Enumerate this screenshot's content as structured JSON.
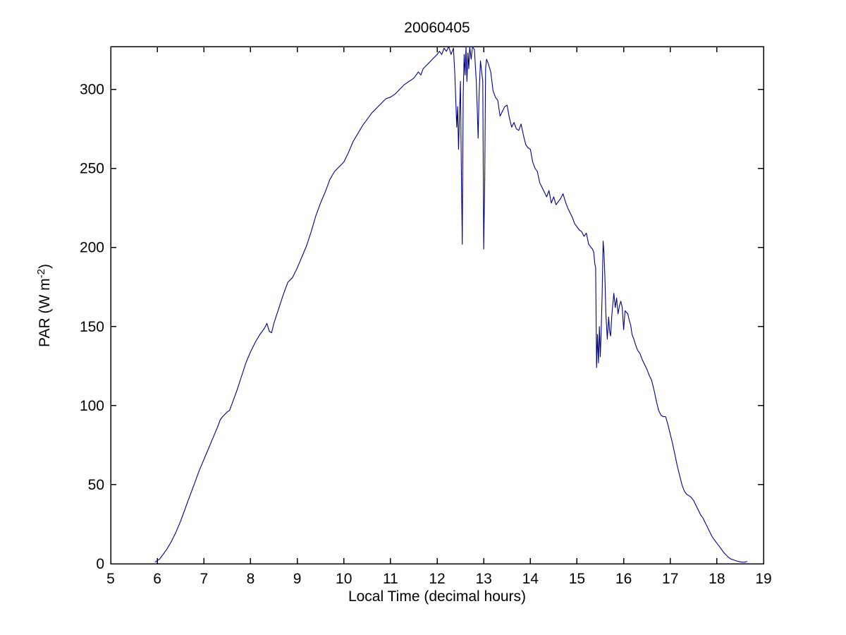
{
  "chart_data": {
    "type": "line",
    "title": "20060405",
    "xlabel": "Local Time (decimal hours)",
    "ylabel": "PAR (W m⁻²)",
    "ylabel_parts": {
      "pre": "PAR (W m",
      "sup": "-2",
      "post": ")"
    },
    "xlim": [
      5,
      19
    ],
    "ylim": [
      0,
      327
    ],
    "xticks": [
      5,
      6,
      7,
      8,
      9,
      10,
      11,
      12,
      13,
      14,
      15,
      16,
      17,
      18,
      19
    ],
    "yticks": [
      0,
      50,
      100,
      150,
      200,
      250,
      300
    ],
    "grid": false,
    "legend": null,
    "line_color": "#00008B",
    "background_color": "#ffffff",
    "points": [
      [
        5.95,
        1
      ],
      [
        6.0,
        2
      ],
      [
        6.05,
        3
      ],
      [
        6.1,
        5
      ],
      [
        6.2,
        9
      ],
      [
        6.3,
        14
      ],
      [
        6.4,
        20
      ],
      [
        6.5,
        27
      ],
      [
        6.6,
        35
      ],
      [
        6.7,
        43
      ],
      [
        6.8,
        51
      ],
      [
        6.9,
        59
      ],
      [
        7.0,
        66
      ],
      [
        7.1,
        73
      ],
      [
        7.2,
        80
      ],
      [
        7.3,
        87
      ],
      [
        7.35,
        91
      ],
      [
        7.4,
        93
      ],
      [
        7.5,
        96
      ],
      [
        7.55,
        97
      ],
      [
        7.6,
        101
      ],
      [
        7.7,
        109
      ],
      [
        7.8,
        118
      ],
      [
        7.9,
        127
      ],
      [
        8.0,
        134
      ],
      [
        8.1,
        140
      ],
      [
        8.2,
        145
      ],
      [
        8.3,
        149
      ],
      [
        8.35,
        152
      ],
      [
        8.4,
        147
      ],
      [
        8.45,
        146
      ],
      [
        8.5,
        152
      ],
      [
        8.6,
        161
      ],
      [
        8.7,
        170
      ],
      [
        8.8,
        178
      ],
      [
        8.9,
        181
      ],
      [
        9.0,
        187
      ],
      [
        9.1,
        194
      ],
      [
        9.2,
        201
      ],
      [
        9.3,
        210
      ],
      [
        9.4,
        220
      ],
      [
        9.5,
        228
      ],
      [
        9.6,
        235
      ],
      [
        9.7,
        243
      ],
      [
        9.8,
        248
      ],
      [
        9.9,
        251
      ],
      [
        10.0,
        254
      ],
      [
        10.1,
        260
      ],
      [
        10.2,
        267
      ],
      [
        10.3,
        272
      ],
      [
        10.4,
        277
      ],
      [
        10.5,
        281
      ],
      [
        10.6,
        285
      ],
      [
        10.7,
        288
      ],
      [
        10.8,
        291
      ],
      [
        10.9,
        294
      ],
      [
        11.0,
        295
      ],
      [
        11.1,
        297
      ],
      [
        11.2,
        300
      ],
      [
        11.3,
        303
      ],
      [
        11.4,
        305
      ],
      [
        11.5,
        307
      ],
      [
        11.6,
        311
      ],
      [
        11.65,
        309
      ],
      [
        11.7,
        313
      ],
      [
        11.8,
        316
      ],
      [
        11.9,
        319
      ],
      [
        12.0,
        322
      ],
      [
        12.05,
        324
      ],
      [
        12.1,
        322
      ],
      [
        12.15,
        326
      ],
      [
        12.2,
        324
      ],
      [
        12.25,
        327
      ],
      [
        12.3,
        322
      ],
      [
        12.35,
        326
      ],
      [
        12.38,
        310
      ],
      [
        12.4,
        293
      ],
      [
        12.42,
        276
      ],
      [
        12.44,
        289
      ],
      [
        12.46,
        262
      ],
      [
        12.48,
        283
      ],
      [
        12.5,
        305
      ],
      [
        12.52,
        250
      ],
      [
        12.54,
        202
      ],
      [
        12.56,
        296
      ],
      [
        12.58,
        322
      ],
      [
        12.6,
        309
      ],
      [
        12.62,
        327
      ],
      [
        12.64,
        305
      ],
      [
        12.66,
        323
      ],
      [
        12.68,
        313
      ],
      [
        12.7,
        327
      ],
      [
        12.73,
        319
      ],
      [
        12.76,
        327
      ],
      [
        12.8,
        325
      ],
      [
        12.84,
        305
      ],
      [
        12.86,
        288
      ],
      [
        12.88,
        269
      ],
      [
        12.9,
        296
      ],
      [
        12.93,
        318
      ],
      [
        12.96,
        310
      ],
      [
        12.98,
        305
      ],
      [
        13.0,
        199
      ],
      [
        13.02,
        240
      ],
      [
        13.04,
        313
      ],
      [
        13.06,
        319
      ],
      [
        13.1,
        316
      ],
      [
        13.15,
        311
      ],
      [
        13.2,
        299
      ],
      [
        13.25,
        295
      ],
      [
        13.3,
        293
      ],
      [
        13.35,
        283
      ],
      [
        13.4,
        286
      ],
      [
        13.45,
        289
      ],
      [
        13.5,
        290
      ],
      [
        13.55,
        282
      ],
      [
        13.6,
        276
      ],
      [
        13.65,
        279
      ],
      [
        13.7,
        275
      ],
      [
        13.75,
        274
      ],
      [
        13.8,
        278
      ],
      [
        13.85,
        271
      ],
      [
        13.9,
        265
      ],
      [
        13.95,
        263
      ],
      [
        14.0,
        262
      ],
      [
        14.05,
        254
      ],
      [
        14.1,
        250
      ],
      [
        14.15,
        248
      ],
      [
        14.2,
        241
      ],
      [
        14.25,
        238
      ],
      [
        14.3,
        235
      ],
      [
        14.35,
        232
      ],
      [
        14.4,
        236
      ],
      [
        14.45,
        228
      ],
      [
        14.5,
        232
      ],
      [
        14.55,
        227
      ],
      [
        14.6,
        229
      ],
      [
        14.65,
        231
      ],
      [
        14.7,
        234
      ],
      [
        14.75,
        229
      ],
      [
        14.8,
        225
      ],
      [
        14.85,
        222
      ],
      [
        14.9,
        219
      ],
      [
        14.95,
        215
      ],
      [
        15.0,
        213
      ],
      [
        15.05,
        211
      ],
      [
        15.1,
        210
      ],
      [
        15.15,
        207
      ],
      [
        15.2,
        209
      ],
      [
        15.25,
        202
      ],
      [
        15.3,
        200
      ],
      [
        15.33,
        199
      ],
      [
        15.36,
        197
      ],
      [
        15.38,
        190
      ],
      [
        15.4,
        187
      ],
      [
        15.42,
        124
      ],
      [
        15.44,
        145
      ],
      [
        15.46,
        127
      ],
      [
        15.48,
        150
      ],
      [
        15.5,
        131
      ],
      [
        15.52,
        148
      ],
      [
        15.54,
        170
      ],
      [
        15.56,
        204
      ],
      [
        15.58,
        196
      ],
      [
        15.6,
        180
      ],
      [
        15.62,
        158
      ],
      [
        15.65,
        142
      ],
      [
        15.68,
        156
      ],
      [
        15.7,
        147
      ],
      [
        15.72,
        144
      ],
      [
        15.75,
        158
      ],
      [
        15.79,
        171
      ],
      [
        15.82,
        162
      ],
      [
        15.85,
        168
      ],
      [
        15.88,
        158
      ],
      [
        15.91,
        163
      ],
      [
        15.94,
        166
      ],
      [
        15.97,
        162
      ],
      [
        16.0,
        148
      ],
      [
        16.03,
        160
      ],
      [
        16.06,
        159
      ],
      [
        16.09,
        158
      ],
      [
        16.12,
        154
      ],
      [
        16.15,
        151
      ],
      [
        16.18,
        145
      ],
      [
        16.22,
        142
      ],
      [
        16.26,
        138
      ],
      [
        16.3,
        135
      ],
      [
        16.35,
        133
      ],
      [
        16.4,
        129
      ],
      [
        16.45,
        126
      ],
      [
        16.5,
        123
      ],
      [
        16.55,
        119
      ],
      [
        16.6,
        116
      ],
      [
        16.65,
        110
      ],
      [
        16.7,
        103
      ],
      [
        16.75,
        97
      ],
      [
        16.8,
        94
      ],
      [
        16.85,
        93
      ],
      [
        16.9,
        93
      ],
      [
        16.95,
        88
      ],
      [
        17.0,
        82
      ],
      [
        17.05,
        76
      ],
      [
        17.1,
        69
      ],
      [
        17.15,
        62
      ],
      [
        17.2,
        56
      ],
      [
        17.25,
        50
      ],
      [
        17.3,
        46
      ],
      [
        17.35,
        44
      ],
      [
        17.4,
        43
      ],
      [
        17.45,
        42
      ],
      [
        17.5,
        40
      ],
      [
        17.55,
        37
      ],
      [
        17.6,
        34
      ],
      [
        17.65,
        31
      ],
      [
        17.7,
        29
      ],
      [
        17.75,
        26
      ],
      [
        17.8,
        23
      ],
      [
        17.85,
        20
      ],
      [
        17.9,
        17
      ],
      [
        17.95,
        15
      ],
      [
        18.0,
        13
      ],
      [
        18.05,
        11
      ],
      [
        18.1,
        9
      ],
      [
        18.15,
        7
      ],
      [
        18.2,
        5.5
      ],
      [
        18.25,
        4
      ],
      [
        18.3,
        3
      ],
      [
        18.35,
        2.5
      ],
      [
        18.4,
        2
      ],
      [
        18.45,
        1.5
      ],
      [
        18.5,
        1.2
      ],
      [
        18.55,
        1
      ],
      [
        18.6,
        1
      ],
      [
        18.65,
        1.5
      ]
    ]
  }
}
